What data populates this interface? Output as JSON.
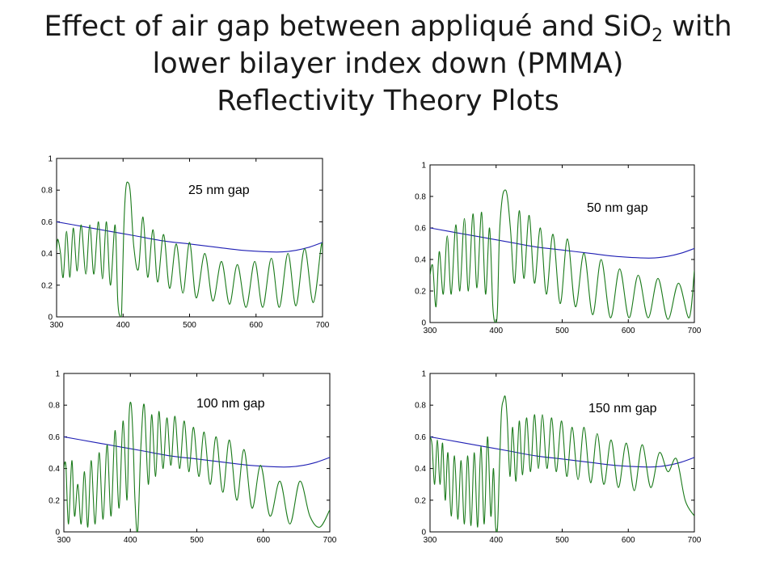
{
  "page_title": {
    "line1_a": "Effect of air gap between appliqué and SiO",
    "line1_sub": "2",
    "line1_b": " with",
    "line2": "lower bilayer index down (PMMA)",
    "line3": "Reflectivity Theory Plots"
  },
  "colors": {
    "baseline": "#1f1fb4",
    "reflectivity": "#1a7a1a",
    "axis": "#000000"
  },
  "chart_data": [
    {
      "type": "line",
      "annotation": "25 nm gap",
      "x_ticks": [
        300,
        400,
        500,
        600,
        700
      ],
      "y_ticks": [
        0,
        0.2,
        0.4,
        0.6,
        0.8,
        1
      ],
      "xlim": [
        300,
        700
      ],
      "ylim": [
        0,
        1
      ],
      "series": [
        {
          "role": "baseline",
          "color": "#1f1fb4",
          "x": [
            300,
            340,
            380,
            420,
            460,
            500,
            540,
            580,
            620,
            640,
            660,
            680,
            700
          ],
          "y": [
            0.6,
            0.57,
            0.54,
            0.51,
            0.48,
            0.46,
            0.44,
            0.42,
            0.41,
            0.41,
            0.42,
            0.44,
            0.47
          ]
        },
        {
          "role": "reflectivity",
          "color": "#1a7a1a",
          "x": [
            300,
            302,
            306,
            310,
            315,
            320,
            325,
            331,
            337,
            344,
            350,
            356,
            363,
            369,
            375,
            381,
            388,
            392,
            396,
            398,
            401,
            404,
            407,
            411,
            416,
            423,
            430,
            437,
            445,
            452,
            461,
            470,
            480,
            490,
            500,
            510,
            523,
            535,
            548,
            560,
            572,
            585,
            598,
            610,
            623,
            635,
            648,
            660,
            673,
            686,
            698,
            700
          ],
          "y": [
            0.42,
            0.49,
            0.4,
            0.25,
            0.54,
            0.25,
            0.56,
            0.29,
            0.58,
            0.27,
            0.58,
            0.27,
            0.6,
            0.24,
            0.6,
            0.2,
            0.58,
            0.1,
            0.0,
            0.05,
            0.55,
            0.8,
            0.85,
            0.78,
            0.45,
            0.3,
            0.63,
            0.25,
            0.55,
            0.22,
            0.52,
            0.18,
            0.46,
            0.15,
            0.47,
            0.12,
            0.4,
            0.1,
            0.35,
            0.08,
            0.33,
            0.06,
            0.35,
            0.06,
            0.37,
            0.06,
            0.4,
            0.07,
            0.43,
            0.09,
            0.45,
            0.4
          ]
        }
      ]
    },
    {
      "type": "line",
      "annotation": "50 nm gap",
      "x_ticks": [
        300,
        400,
        500,
        600,
        700
      ],
      "y_ticks": [
        0,
        0.2,
        0.4,
        0.6,
        0.8,
        1
      ],
      "xlim": [
        300,
        700
      ],
      "ylim": [
        0,
        1
      ],
      "series": [
        {
          "role": "baseline",
          "color": "#1f1fb4",
          "x": [
            300,
            340,
            380,
            420,
            460,
            500,
            540,
            580,
            620,
            640,
            660,
            680,
            700
          ],
          "y": [
            0.6,
            0.57,
            0.54,
            0.51,
            0.48,
            0.46,
            0.44,
            0.42,
            0.41,
            0.41,
            0.42,
            0.44,
            0.47
          ]
        },
        {
          "role": "reflectivity",
          "color": "#1a7a1a",
          "x": [
            300,
            304,
            309,
            314,
            320,
            326,
            332,
            339,
            345,
            352,
            358,
            365,
            371,
            378,
            384,
            390,
            395,
            399,
            402,
            405,
            409,
            413,
            417,
            422,
            428,
            435,
            442,
            450,
            458,
            467,
            476,
            486,
            497,
            508,
            520,
            533,
            546,
            559,
            573,
            587,
            601,
            615,
            630,
            645,
            660,
            676,
            692,
            700
          ],
          "y": [
            0.3,
            0.36,
            0.1,
            0.45,
            0.18,
            0.55,
            0.18,
            0.62,
            0.2,
            0.66,
            0.2,
            0.69,
            0.22,
            0.7,
            0.18,
            0.6,
            0.1,
            0.0,
            0.08,
            0.55,
            0.78,
            0.84,
            0.8,
            0.58,
            0.25,
            0.71,
            0.28,
            0.68,
            0.25,
            0.6,
            0.18,
            0.56,
            0.12,
            0.53,
            0.1,
            0.44,
            0.05,
            0.4,
            0.03,
            0.34,
            0.03,
            0.3,
            0.03,
            0.28,
            0.02,
            0.25,
            0.03,
            0.33
          ]
        }
      ]
    },
    {
      "type": "line",
      "annotation": "100 nm gap",
      "x_ticks": [
        300,
        400,
        500,
        600,
        700
      ],
      "y_ticks": [
        0,
        0.2,
        0.4,
        0.6,
        0.8,
        1
      ],
      "xlim": [
        300,
        700
      ],
      "ylim": [
        0,
        1
      ],
      "series": [
        {
          "role": "baseline",
          "color": "#1f1fb4",
          "x": [
            300,
            340,
            380,
            420,
            460,
            500,
            540,
            580,
            620,
            640,
            660,
            680,
            700
          ],
          "y": [
            0.6,
            0.57,
            0.54,
            0.51,
            0.48,
            0.46,
            0.44,
            0.42,
            0.41,
            0.41,
            0.42,
            0.44,
            0.47
          ]
        },
        {
          "role": "reflectivity",
          "color": "#1a7a1a",
          "x": [
            300,
            303,
            307,
            312,
            316,
            321,
            326,
            331,
            336,
            341,
            347,
            353,
            359,
            365,
            371,
            377,
            383,
            389,
            395,
            398,
            401,
            404,
            407,
            411,
            416,
            421,
            427,
            432,
            438,
            443,
            449,
            455,
            461,
            467,
            474,
            481,
            488,
            495,
            503,
            511,
            520,
            529,
            539,
            549,
            560,
            571,
            583,
            596,
            610,
            625,
            640,
            655,
            670,
            685,
            700
          ],
          "y": [
            0.4,
            0.42,
            0.05,
            0.45,
            0.1,
            0.3,
            0.05,
            0.38,
            0.03,
            0.45,
            0.05,
            0.5,
            0.08,
            0.55,
            0.1,
            0.64,
            0.15,
            0.7,
            0.2,
            0.72,
            0.81,
            0.6,
            0.2,
            0.0,
            0.55,
            0.8,
            0.3,
            0.74,
            0.35,
            0.76,
            0.4,
            0.72,
            0.42,
            0.73,
            0.4,
            0.7,
            0.38,
            0.66,
            0.35,
            0.63,
            0.3,
            0.6,
            0.25,
            0.58,
            0.2,
            0.52,
            0.15,
            0.42,
            0.1,
            0.32,
            0.05,
            0.32,
            0.1,
            0.03,
            0.14
          ]
        }
      ]
    },
    {
      "type": "line",
      "annotation": "150 nm gap",
      "x_ticks": [
        300,
        400,
        500,
        600,
        700
      ],
      "y_ticks": [
        0,
        0.2,
        0.4,
        0.6,
        0.8,
        1
      ],
      "xlim": [
        300,
        700
      ],
      "ylim": [
        0,
        1
      ],
      "series": [
        {
          "role": "baseline",
          "color": "#1f1fb4",
          "x": [
            300,
            340,
            380,
            420,
            460,
            500,
            540,
            580,
            620,
            640,
            660,
            680,
            700
          ],
          "y": [
            0.6,
            0.57,
            0.54,
            0.51,
            0.48,
            0.46,
            0.44,
            0.42,
            0.41,
            0.41,
            0.42,
            0.44,
            0.47
          ]
        },
        {
          "role": "reflectivity",
          "color": "#1a7a1a",
          "x": [
            300,
            303,
            307,
            311,
            315,
            319,
            323,
            327,
            332,
            337,
            342,
            347,
            352,
            357,
            362,
            367,
            372,
            377,
            382,
            387,
            392,
            396,
            399,
            402,
            405,
            408,
            411,
            414,
            417,
            421,
            425,
            430,
            435,
            440,
            446,
            452,
            458,
            464,
            470,
            477,
            484,
            491,
            499,
            507,
            515,
            524,
            533,
            543,
            553,
            563,
            574,
            585,
            597,
            609,
            621,
            634,
            647,
            660,
            673,
            686,
            700
          ],
          "y": [
            0.6,
            0.55,
            0.3,
            0.58,
            0.3,
            0.56,
            0.2,
            0.5,
            0.1,
            0.48,
            0.08,
            0.45,
            0.05,
            0.48,
            0.04,
            0.5,
            0.03,
            0.54,
            0.05,
            0.6,
            0.1,
            0.4,
            0.05,
            0.02,
            0.4,
            0.75,
            0.83,
            0.85,
            0.7,
            0.35,
            0.66,
            0.32,
            0.7,
            0.36,
            0.72,
            0.38,
            0.74,
            0.4,
            0.74,
            0.4,
            0.72,
            0.38,
            0.7,
            0.35,
            0.66,
            0.33,
            0.66,
            0.31,
            0.62,
            0.3,
            0.58,
            0.28,
            0.56,
            0.26,
            0.55,
            0.28,
            0.5,
            0.38,
            0.46,
            0.2,
            0.1
          ]
        }
      ]
    }
  ]
}
